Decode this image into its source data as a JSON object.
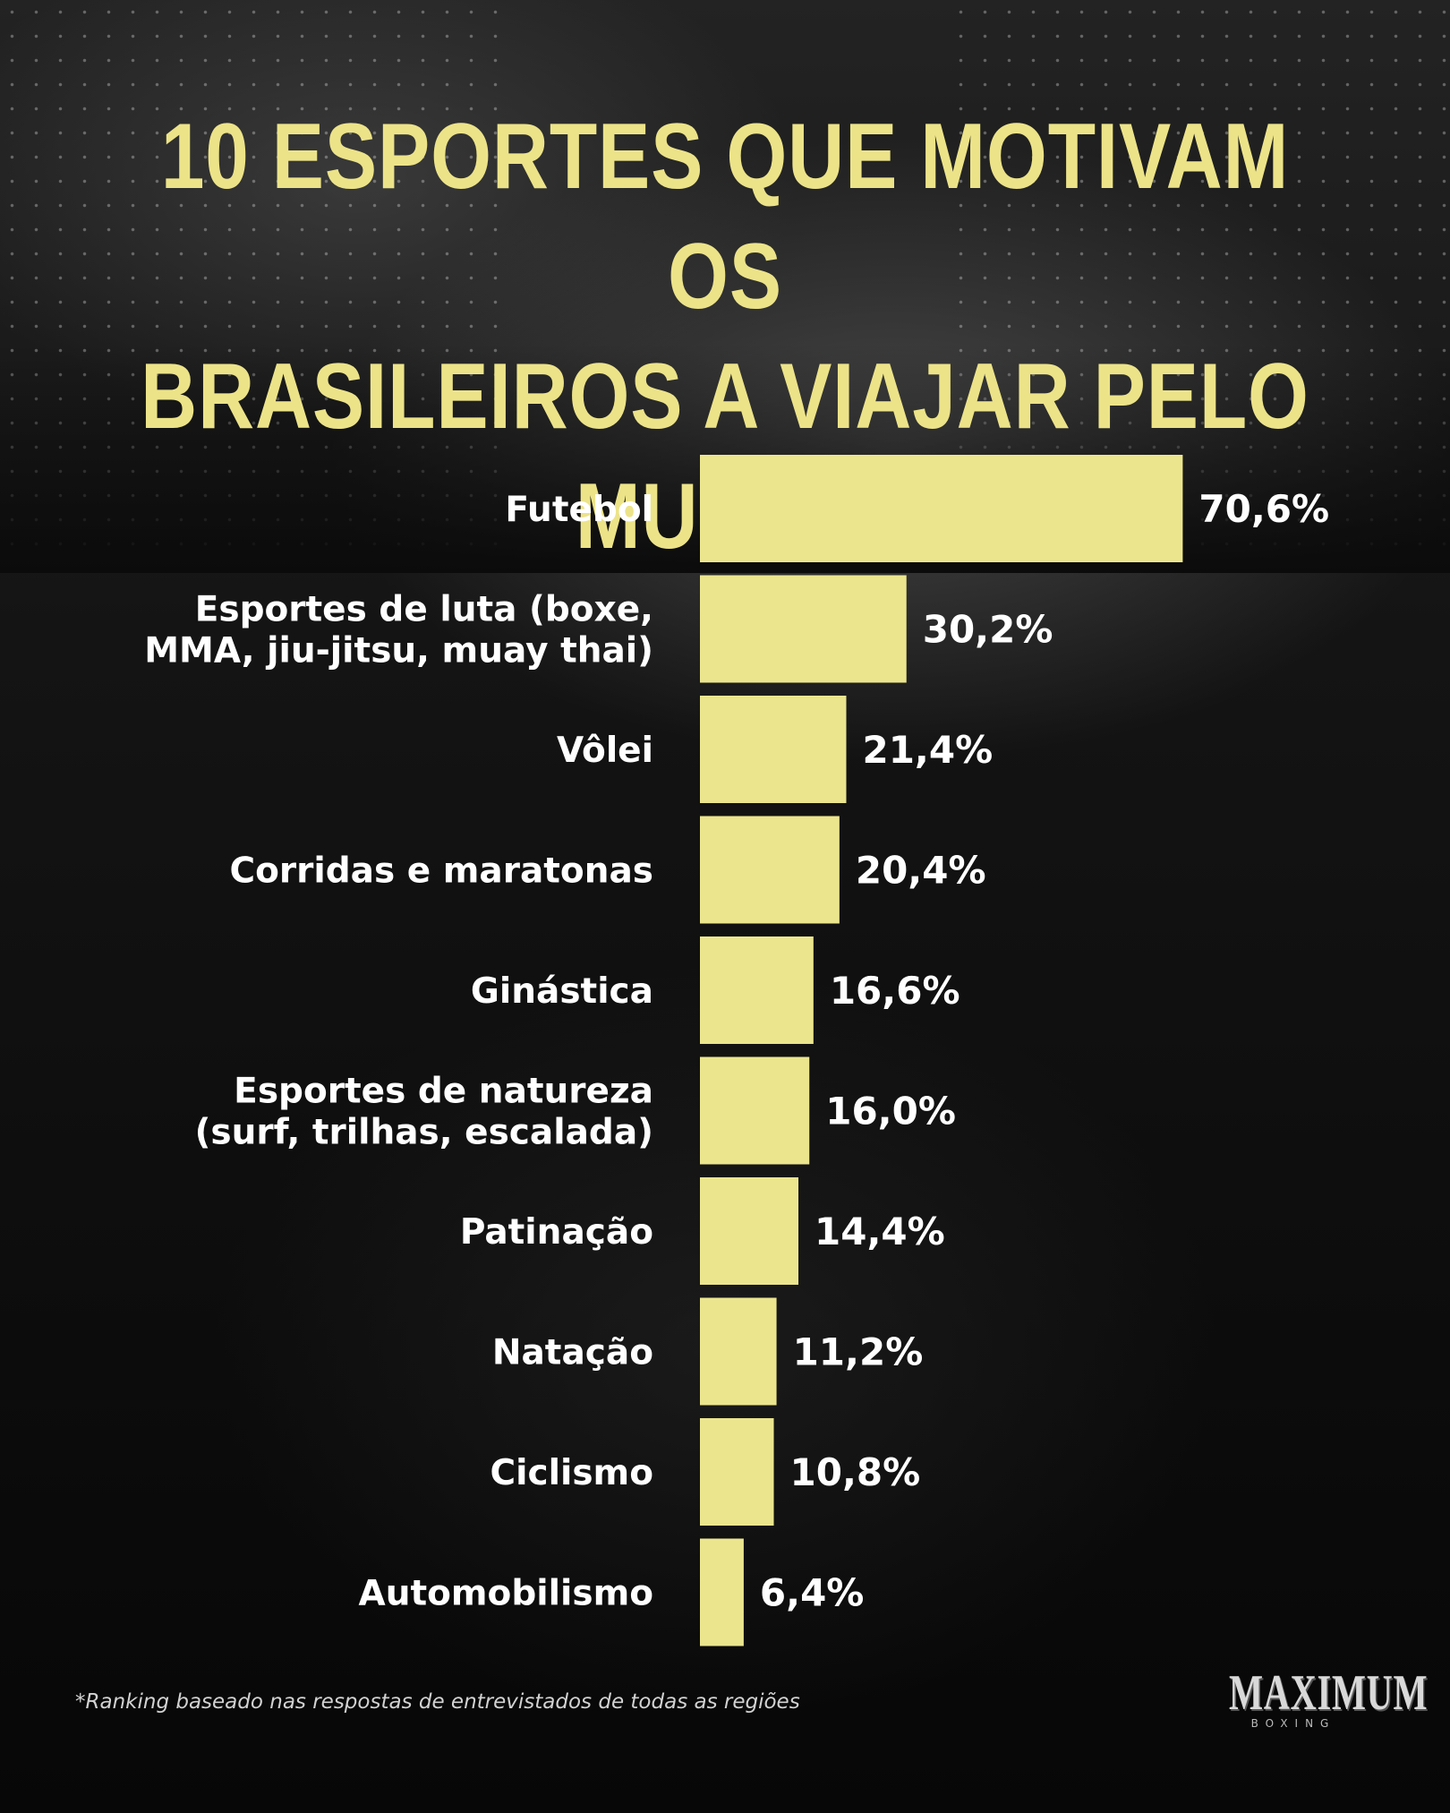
{
  "title_line1": "10 ESPORTES QUE MOTIVAM OS",
  "title_line2": "BRASILEIROS A VIAJAR PELO MUNDO",
  "footnote": "*Ranking baseado nas respostas de entrevistados de todas as regiões",
  "brand": {
    "name": "MAXIMUM",
    "sub": "BOXING"
  },
  "colors": {
    "bar": "#ebe58e",
    "title": "#ece389",
    "label": "#ffffff"
  },
  "chart_data": {
    "type": "bar",
    "orientation": "horizontal",
    "title": "10 ESPORTES QUE MOTIVAM OS BRASILEIROS A VIAJAR PELO MUNDO",
    "categories": [
      [
        "Futebol"
      ],
      [
        "Esportes de luta (boxe,",
        "MMA, jiu-jitsu, muay thai)"
      ],
      [
        "Vôlei"
      ],
      [
        "Corridas e maratonas"
      ],
      [
        "Ginástica"
      ],
      [
        "Esportes de natureza",
        "(surf, trilhas, escalada)"
      ],
      [
        "Patinação"
      ],
      [
        "Natação"
      ],
      [
        "Ciclismo"
      ],
      [
        "Automobilismo"
      ]
    ],
    "values": [
      70.6,
      30.2,
      21.4,
      20.4,
      16.6,
      16.0,
      14.4,
      11.2,
      10.8,
      6.4
    ],
    "value_labels": [
      "70,6%",
      "30,2%",
      "21,4%",
      "20,4%",
      "16,6%",
      "16,0%",
      "14,4%",
      "11,2%",
      "10,8%",
      "6,4%"
    ],
    "unit": "%",
    "grid": false,
    "legend": "none"
  }
}
